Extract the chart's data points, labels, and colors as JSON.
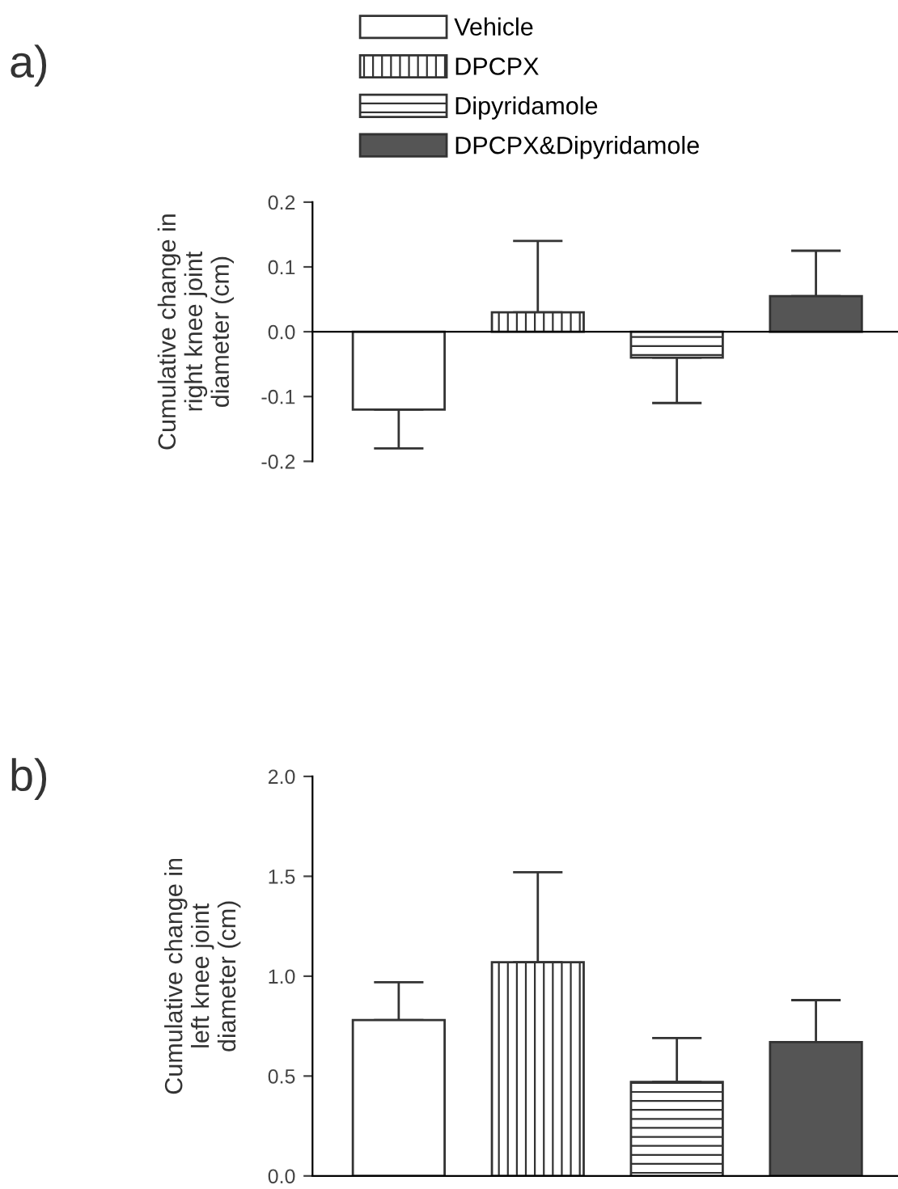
{
  "chart_data": [
    {
      "type": "bar",
      "title": "a)",
      "ylabel": "Cumulative change in\nright knee joint\ndiameter (cm)",
      "categories": [
        null
      ],
      "legend": "top",
      "series": [
        {
          "name": "Vehicle",
          "color": "#ffffff",
          "values": [
            -0.12
          ],
          "errors": [
            [
              -0.18,
              -0.12
            ]
          ]
        },
        {
          "name": "DPCPX",
          "color": "#333333",
          "values": [
            0.03
          ],
          "errors": [
            [
              0.03,
              0.14
            ]
          ]
        },
        {
          "name": "Dipyridamole",
          "color": "#333333",
          "values": [
            -0.04
          ],
          "errors": [
            [
              -0.11,
              -0.04
            ]
          ]
        },
        {
          "name": "DPCPX&Dipyridamole",
          "color": "#555555",
          "values": [
            0.055
          ],
          "errors": [
            [
              0.055,
              0.125
            ]
          ]
        }
      ],
      "ylim": [
        -0.2,
        0.2
      ],
      "yticks": [
        {
          "value": -0.2,
          "label": "-0.2"
        },
        {
          "value": -0.1,
          "label": "-0.1"
        },
        {
          "value": 0,
          "label": "0.0"
        },
        0.1,
        0.2
      ],
      "tick_labels": "y"
    },
    {
      "type": "bar",
      "title": "b)",
      "ylabel": "Cumulative change in\nleft knee joint\ndiameter (cm)",
      "categories": [
        null
      ],
      "series": [
        {
          "color": "#ffffff",
          "values": [
            0.78
          ],
          "errors": [
            [
              0.78,
              0.97
            ]
          ]
        },
        {
          "color": "#333333",
          "values": [
            1.07
          ],
          "errors": [
            [
              1.07,
              1.52
            ]
          ]
        },
        {
          "color": "#333333",
          "values": [
            0.47
          ],
          "errors": [
            [
              0.47,
              0.69
            ]
          ]
        },
        {
          "color": "#555555",
          "values": [
            0.67
          ],
          "errors": [
            [
              0.67,
              0.88
            ]
          ]
        }
      ],
      "ylim": [
        0.0,
        2.0
      ],
      "yticks": [
        {
          "value": 0,
          "label": "0.0"
        },
        0.5,
        {
          "value": 1,
          "label": "1.0"
        },
        1.5,
        {
          "value": 2,
          "label": "2.0"
        }
      ],
      "tick_labels": "y"
    }
  ]
}
